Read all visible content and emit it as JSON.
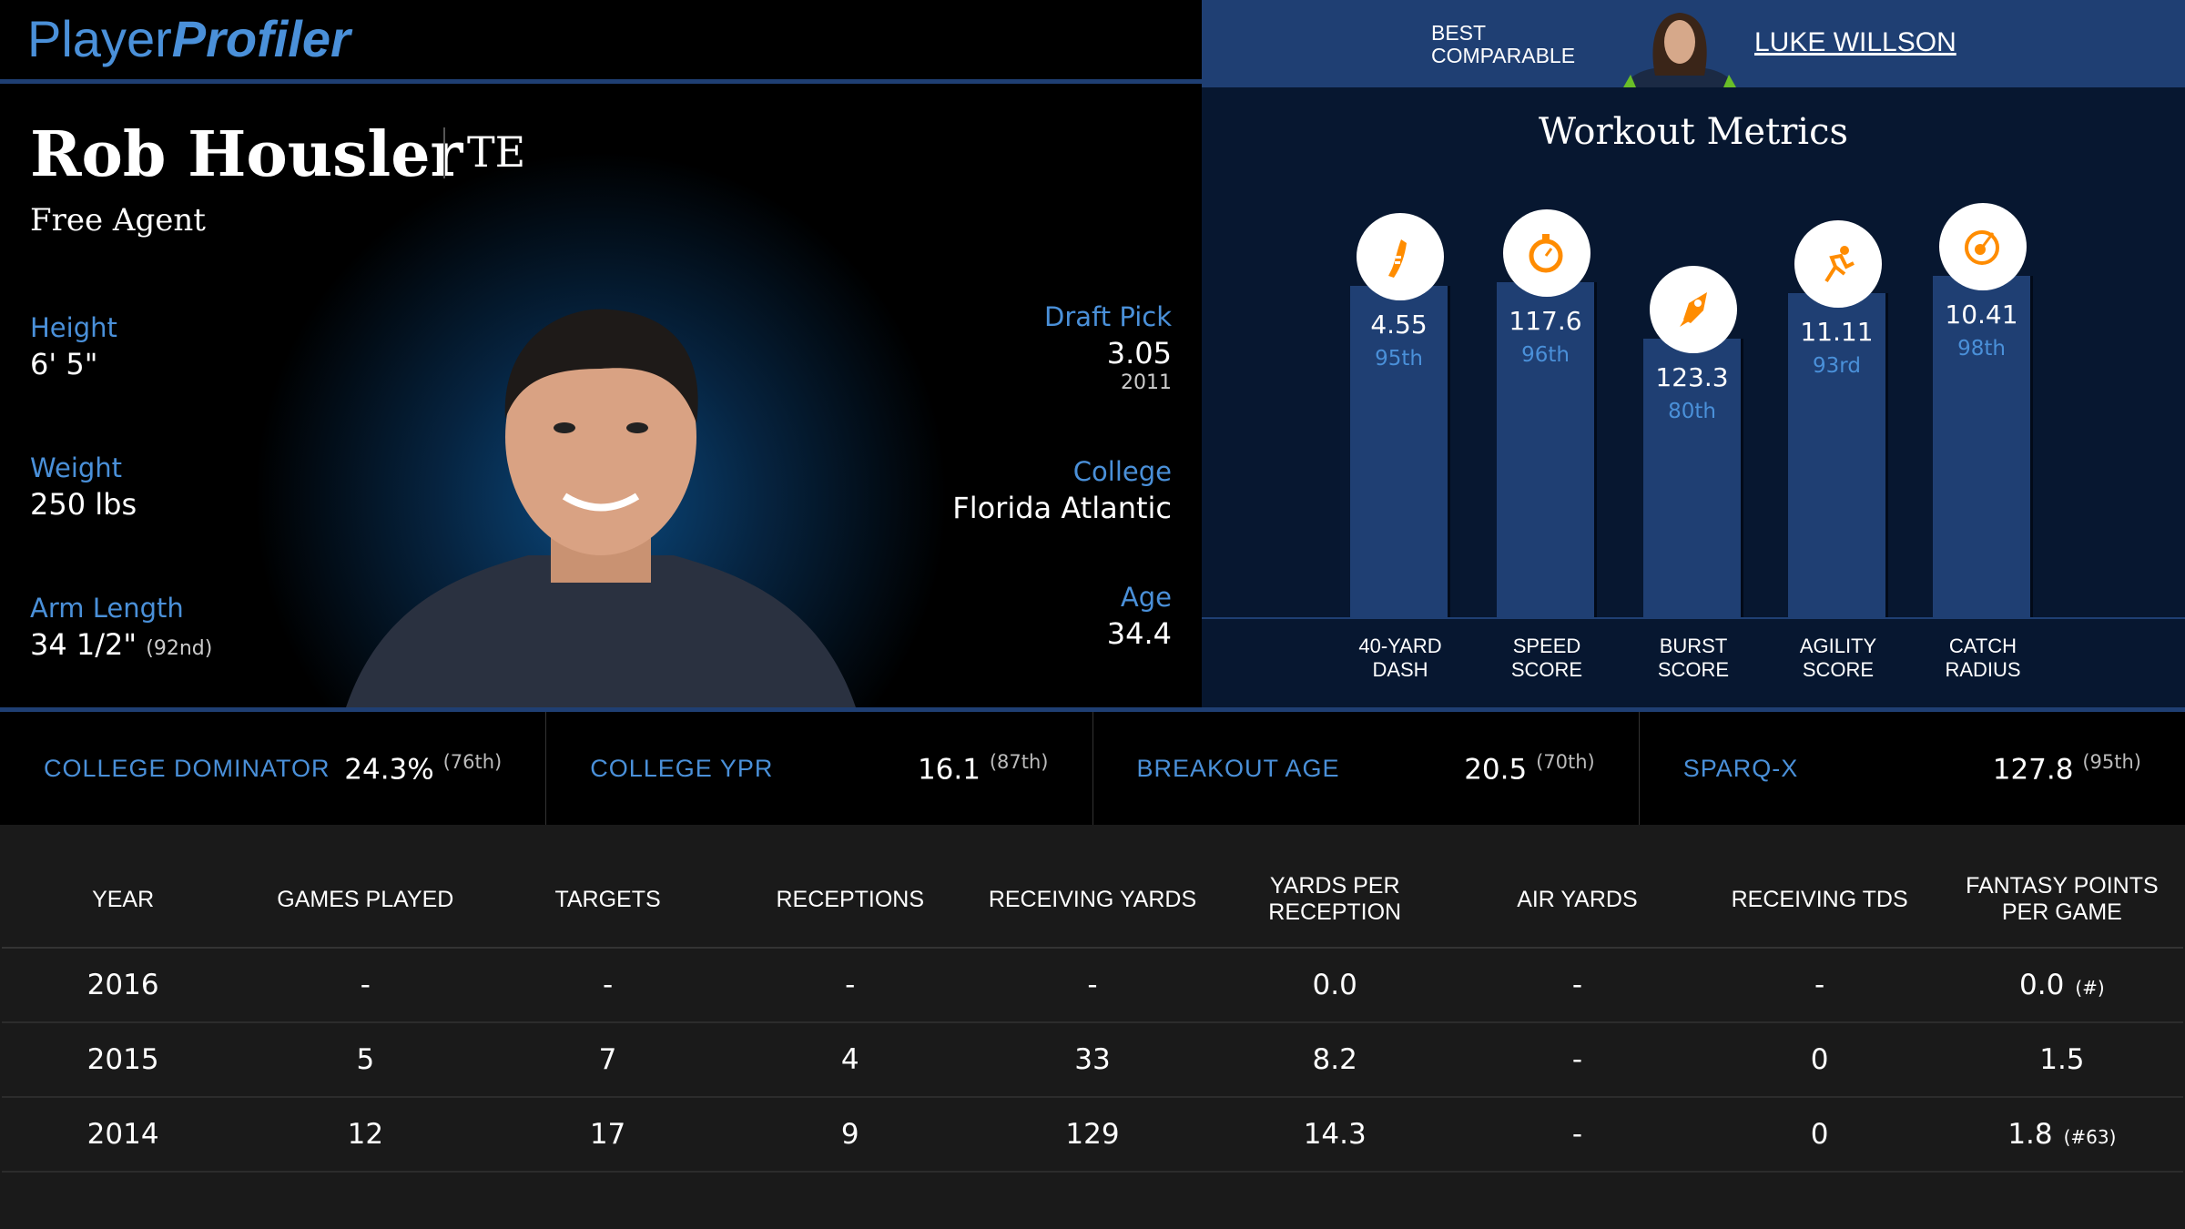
{
  "brand": {
    "part1": "Player",
    "part2": "Profiler"
  },
  "player": {
    "name": "Rob Housler",
    "position": "TE",
    "team": "Free Agent",
    "height_label": "Height",
    "height": "6' 5\"",
    "weight_label": "Weight",
    "weight": "250 lbs",
    "arm_label": "Arm Length",
    "arm": "34 1/2\"",
    "arm_rank": "(92nd)",
    "draft_label": "Draft Pick",
    "draft": "3.05",
    "draft_year": "2011",
    "college_label": "College",
    "college": "Florida Atlantic",
    "age_label": "Age",
    "age": "34.4"
  },
  "comparable": {
    "label_line1": "BEST",
    "label_line2": "COMPARABLE",
    "name": "LUKE WILLSON"
  },
  "workout": {
    "title": "Workout Metrics",
    "metrics": [
      {
        "label1": "40-YARD",
        "label2": "DASH",
        "value": "4.55",
        "pct_label": "95th",
        "pct": 95,
        "icon": "shoe-icon"
      },
      {
        "label1": "SPEED",
        "label2": "SCORE",
        "value": "117.6",
        "pct_label": "96th",
        "pct": 96,
        "icon": "stopwatch-icon"
      },
      {
        "label1": "BURST",
        "label2": "SCORE",
        "value": "123.3",
        "pct_label": "80th",
        "pct": 80,
        "icon": "rocket-icon"
      },
      {
        "label1": "AGILITY",
        "label2": "SCORE",
        "value": "11.11",
        "pct_label": "93rd",
        "pct": 93,
        "icon": "runner-icon"
      },
      {
        "label1": "CATCH",
        "label2": "RADIUS",
        "value": "10.41",
        "pct_label": "98th",
        "pct": 98,
        "icon": "target-icon"
      }
    ],
    "accent": "#ff8c00"
  },
  "stats": [
    {
      "label": "COLLEGE DOMINATOR",
      "value": "24.3%",
      "rank": "(76th)"
    },
    {
      "label": "COLLEGE YPR",
      "value": "16.1",
      "rank": "(87th)"
    },
    {
      "label": "BREAKOUT AGE",
      "value": "20.5",
      "rank": "(70th)"
    },
    {
      "label": "SPARQ-X",
      "value": "127.8",
      "rank": "(95th)"
    }
  ],
  "table": {
    "headers": [
      "YEAR",
      "GAMES PLAYED",
      "TARGETS",
      "RECEPTIONS",
      "RECEIVING YARDS",
      "YARDS PER RECEPTION",
      "AIR YARDS",
      "RECEIVING TDS",
      "FANTASY POINTS PER GAME"
    ],
    "rows": [
      {
        "cells": [
          "2016",
          "-",
          "-",
          "-",
          "-",
          "0.0",
          "-",
          "-",
          "0.0"
        ],
        "rank": "(#)"
      },
      {
        "cells": [
          "2015",
          "5",
          "7",
          "4",
          "33",
          "8.2",
          "-",
          "0",
          "1.5"
        ],
        "rank": ""
      },
      {
        "cells": [
          "2014",
          "12",
          "17",
          "9",
          "129",
          "14.3",
          "-",
          "0",
          "1.8"
        ],
        "rank": "(#63)"
      }
    ]
  }
}
